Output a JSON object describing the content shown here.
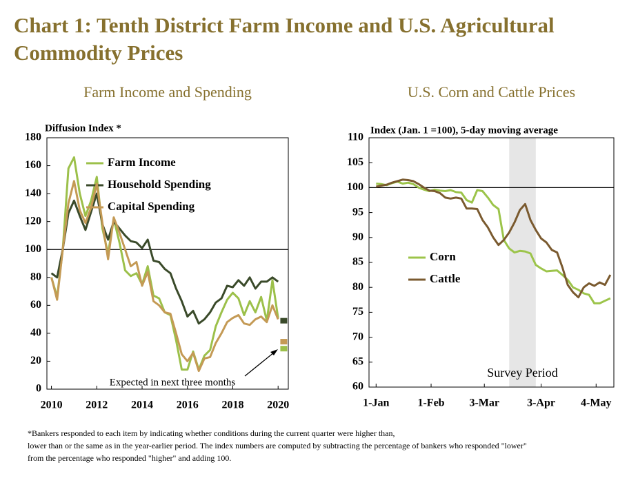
{
  "title": [
    "Chart 1: Tenth District Farm Income and U.S. Agricultural",
    "Commodity Prices"
  ],
  "footnote": [
    "*Bankers responded to each item by indicating whether conditions during the current quarter were higher than,",
    "lower than or the same as in the year-earlier period.  The index numbers are computed by subtracting the percentage of bankers who responded \"lower\"",
    "from the percentage who responded \"higher\" and adding 100."
  ],
  "chart_data": [
    {
      "type": "line",
      "title": "Farm Income and Spending",
      "ylabel": "Diffusion Index *",
      "x": [
        2010,
        2010.25,
        2010.5,
        2010.75,
        2011,
        2011.25,
        2011.5,
        2011.75,
        2012,
        2012.25,
        2012.5,
        2012.75,
        2013,
        2013.25,
        2013.5,
        2013.75,
        2014,
        2014.25,
        2014.5,
        2014.75,
        2015,
        2015.25,
        2015.5,
        2015.75,
        2016,
        2016.25,
        2016.5,
        2016.75,
        2017,
        2017.25,
        2017.5,
        2017.75,
        2018,
        2018.25,
        2018.5,
        2018.75,
        2019,
        2019.25,
        2019.5,
        2019.75,
        2020
      ],
      "xlim": [
        2009.8,
        2020.45
      ],
      "xticks": [
        2010,
        2012,
        2014,
        2016,
        2018,
        2020
      ],
      "ylim": [
        0,
        180
      ],
      "yticks": [
        0,
        20,
        40,
        60,
        80,
        100,
        120,
        140,
        160,
        180
      ],
      "reference_line": 100,
      "expected_x": 2020.25,
      "annotation": "Expected in next three months",
      "series": [
        {
          "name": "Farm Income",
          "color": "#9cc04a",
          "expected": 29,
          "values": [
            80,
            66,
            100,
            158,
            166,
            140,
            124,
            135,
            152,
            115,
            97,
            122,
            105,
            85,
            81,
            83,
            75,
            88,
            67,
            65,
            55,
            53,
            35,
            14,
            14,
            27,
            14,
            24,
            28,
            45,
            55,
            64,
            69,
            65,
            53,
            63,
            55,
            66,
            49,
            78,
            51
          ]
        },
        {
          "name": "Household Spending",
          "color": "#3a4a2a",
          "expected": 49,
          "values": [
            83,
            80,
            100,
            126,
            135,
            124,
            114,
            127,
            140,
            118,
            107,
            120,
            115,
            110,
            106,
            105,
            101,
            107,
            92,
            91,
            86,
            83,
            72,
            63,
            52,
            56,
            47,
            50,
            55,
            62,
            65,
            74,
            73,
            78,
            74,
            80,
            72,
            77,
            77,
            80,
            77
          ]
        },
        {
          "name": "Capital Spending",
          "color": "#c49a55",
          "expected": 34,
          "values": [
            80,
            64,
            100,
            133,
            149,
            128,
            119,
            130,
            147,
            119,
            93,
            123,
            112,
            100,
            88,
            91,
            74,
            84,
            63,
            60,
            55,
            54,
            40,
            25,
            20,
            26,
            13,
            22,
            23,
            33,
            40,
            48,
            51,
            53,
            47,
            46,
            50,
            52,
            48,
            60,
            50
          ]
        }
      ]
    },
    {
      "type": "line",
      "title": "U.S. Corn and Cattle Prices",
      "ylabel": "Index (Jan. 1 =100), 5-day moving average",
      "x": [
        0,
        3,
        6,
        9,
        12,
        15,
        18,
        21,
        24,
        27,
        30,
        33,
        36,
        39,
        42,
        45,
        48,
        51,
        54,
        57,
        60,
        63,
        66,
        69,
        72,
        75,
        78,
        81,
        84,
        87,
        90,
        93,
        96,
        99,
        102,
        105,
        108,
        111,
        114,
        117,
        120,
        123,
        126,
        129,
        132
      ],
      "xlim": [
        -4,
        134
      ],
      "xticks": [
        {
          "value": 0,
          "label": "1-Jan"
        },
        {
          "value": 31,
          "label": "1-Feb"
        },
        {
          "value": 61,
          "label": "3-Mar"
        },
        {
          "value": 93,
          "label": "3-Apr"
        },
        {
          "value": 124,
          "label": "4-May"
        }
      ],
      "ylim": [
        60,
        110
      ],
      "yticks": [
        60,
        65,
        70,
        75,
        80,
        85,
        90,
        95,
        100,
        105,
        110
      ],
      "reference_line": 100,
      "shaded": {
        "label": "Survey Period",
        "range": [
          75,
          90
        ]
      },
      "series": [
        {
          "name": "Corn",
          "color": "#9cc44a",
          "values": [
            100.8,
            100.7,
            100.5,
            100.9,
            101.2,
            100.8,
            101,
            100.7,
            100,
            99.6,
            99.3,
            99.6,
            99.4,
            99.3,
            99.5,
            99.1,
            99,
            97.5,
            97,
            99.5,
            99.3,
            98,
            96.5,
            95.7,
            89.5,
            87.8,
            87,
            87.3,
            87.2,
            86.8,
            84.5,
            83.8,
            83.2,
            83.3,
            83.4,
            82.5,
            81.5,
            80,
            79.5,
            78.8,
            78.5,
            76.8,
            76.8,
            77.3,
            77.8
          ]
        },
        {
          "name": "Cattle",
          "color": "#7a5a2f",
          "values": [
            100.2,
            100.4,
            100.6,
            101,
            101.3,
            101.6,
            101.5,
            101.3,
            100.7,
            100,
            99.4,
            99.3,
            98.9,
            98,
            97.8,
            98,
            97.8,
            95.8,
            95.8,
            95.7,
            93.5,
            92,
            90,
            88.5,
            89.5,
            91,
            93,
            95.5,
            96.7,
            93.5,
            91.5,
            89.8,
            89,
            87.5,
            87,
            84,
            80.5,
            79,
            78,
            80,
            80.8,
            80.3,
            81,
            80.5,
            82.5
          ]
        }
      ]
    }
  ]
}
